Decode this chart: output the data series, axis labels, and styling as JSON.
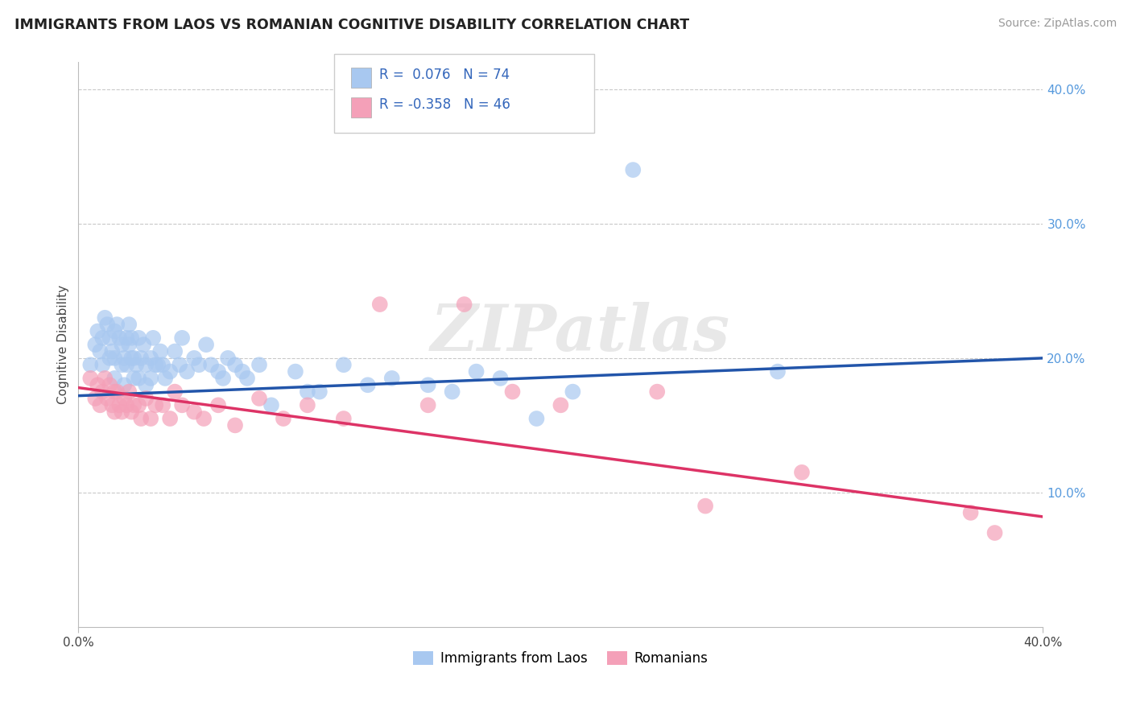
{
  "title": "IMMIGRANTS FROM LAOS VS ROMANIAN COGNITIVE DISABILITY CORRELATION CHART",
  "source": "Source: ZipAtlas.com",
  "ylabel": "Cognitive Disability",
  "watermark": "ZIPatlas",
  "xlim": [
    0.0,
    0.4
  ],
  "ylim": [
    0.0,
    0.42
  ],
  "yticks": [
    0.1,
    0.2,
    0.3,
    0.4
  ],
  "ytick_labels": [
    "10.0%",
    "20.0%",
    "30.0%",
    "40.0%"
  ],
  "blue_R": 0.076,
  "blue_N": 74,
  "pink_R": -0.358,
  "pink_N": 46,
  "blue_color": "#A8C8F0",
  "pink_color": "#F4A0B8",
  "blue_line_color": "#2255AA",
  "pink_line_color": "#DD3366",
  "legend_label_blue": "Immigrants from Laos",
  "legend_label_pink": "Romanians",
  "blue_line_x0": 0.0,
  "blue_line_y0": 0.172,
  "blue_line_x1": 0.4,
  "blue_line_y1": 0.2,
  "pink_line_x0": 0.0,
  "pink_line_y0": 0.178,
  "pink_line_x1": 0.4,
  "pink_line_y1": 0.082,
  "blue_scatter_x": [
    0.005,
    0.007,
    0.008,
    0.009,
    0.01,
    0.01,
    0.011,
    0.012,
    0.013,
    0.013,
    0.014,
    0.015,
    0.015,
    0.015,
    0.016,
    0.017,
    0.018,
    0.018,
    0.019,
    0.019,
    0.02,
    0.02,
    0.021,
    0.021,
    0.022,
    0.022,
    0.023,
    0.023,
    0.024,
    0.025,
    0.025,
    0.026,
    0.027,
    0.028,
    0.028,
    0.03,
    0.03,
    0.031,
    0.032,
    0.033,
    0.034,
    0.035,
    0.036,
    0.038,
    0.04,
    0.042,
    0.043,
    0.045,
    0.048,
    0.05,
    0.053,
    0.055,
    0.058,
    0.06,
    0.062,
    0.065,
    0.068,
    0.07,
    0.075,
    0.08,
    0.09,
    0.095,
    0.1,
    0.11,
    0.12,
    0.13,
    0.145,
    0.155,
    0.165,
    0.175,
    0.19,
    0.205,
    0.23,
    0.29
  ],
  "blue_scatter_y": [
    0.195,
    0.21,
    0.22,
    0.205,
    0.215,
    0.195,
    0.23,
    0.225,
    0.2,
    0.215,
    0.205,
    0.22,
    0.2,
    0.185,
    0.225,
    0.215,
    0.195,
    0.21,
    0.18,
    0.2,
    0.215,
    0.195,
    0.21,
    0.225,
    0.2,
    0.215,
    0.185,
    0.2,
    0.195,
    0.215,
    0.185,
    0.2,
    0.21,
    0.195,
    0.18,
    0.2,
    0.185,
    0.215,
    0.195,
    0.195,
    0.205,
    0.195,
    0.185,
    0.19,
    0.205,
    0.195,
    0.215,
    0.19,
    0.2,
    0.195,
    0.21,
    0.195,
    0.19,
    0.185,
    0.2,
    0.195,
    0.19,
    0.185,
    0.195,
    0.165,
    0.19,
    0.175,
    0.175,
    0.195,
    0.18,
    0.185,
    0.18,
    0.175,
    0.19,
    0.185,
    0.155,
    0.175,
    0.34,
    0.19
  ],
  "pink_scatter_x": [
    0.005,
    0.007,
    0.008,
    0.009,
    0.01,
    0.011,
    0.012,
    0.013,
    0.014,
    0.015,
    0.015,
    0.016,
    0.017,
    0.018,
    0.019,
    0.02,
    0.021,
    0.022,
    0.023,
    0.025,
    0.026,
    0.028,
    0.03,
    0.032,
    0.035,
    0.038,
    0.04,
    0.043,
    0.048,
    0.052,
    0.058,
    0.065,
    0.075,
    0.085,
    0.095,
    0.11,
    0.125,
    0.145,
    0.16,
    0.18,
    0.2,
    0.24,
    0.26,
    0.3,
    0.37,
    0.38
  ],
  "pink_scatter_y": [
    0.185,
    0.17,
    0.18,
    0.165,
    0.175,
    0.185,
    0.17,
    0.18,
    0.165,
    0.175,
    0.16,
    0.175,
    0.165,
    0.16,
    0.17,
    0.165,
    0.175,
    0.16,
    0.165,
    0.165,
    0.155,
    0.17,
    0.155,
    0.165,
    0.165,
    0.155,
    0.175,
    0.165,
    0.16,
    0.155,
    0.165,
    0.15,
    0.17,
    0.155,
    0.165,
    0.155,
    0.24,
    0.165,
    0.24,
    0.175,
    0.165,
    0.175,
    0.09,
    0.115,
    0.085,
    0.07
  ]
}
